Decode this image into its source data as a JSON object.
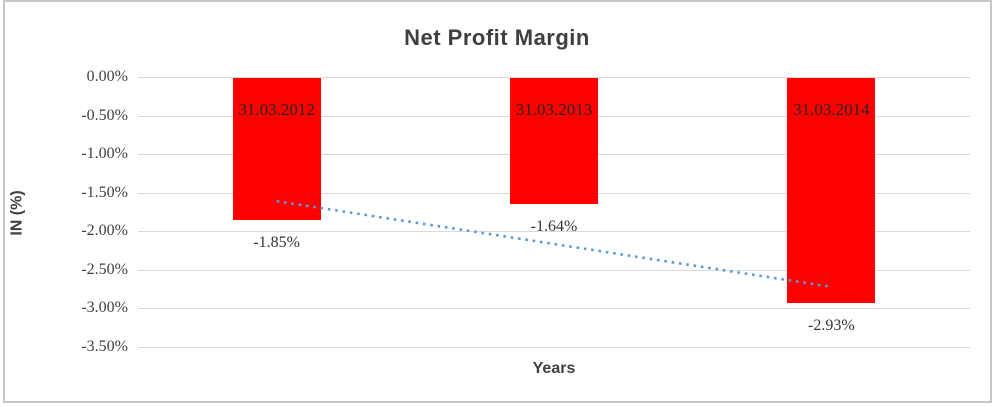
{
  "chart_data": {
    "type": "bar",
    "title": "Net Profit Margin",
    "xlabel": "Years",
    "ylabel": "IN (%)",
    "categories": [
      "31.03.2012",
      "31.03.2013",
      "31.03.2014"
    ],
    "values": [
      -1.85,
      -1.64,
      -2.93
    ],
    "data_labels": [
      "-1.85%",
      "-1.64%",
      "-2.93%"
    ],
    "y_ticks": [
      "0.00%",
      "-0.50%",
      "-1.00%",
      "-1.50%",
      "-2.00%",
      "-2.50%",
      "-3.00%",
      "-3.50%"
    ],
    "ylim": [
      -3.5,
      0
    ],
    "grid": true,
    "legend": "none",
    "bar_color": "#ff0000",
    "trendline": {
      "type": "linear",
      "style": "dotted",
      "color": "#5b9bd5",
      "value_start": -1.61,
      "value_end": -2.72
    }
  },
  "colors": {
    "title_text": "#3f3f3f",
    "tick_text": "#3f3f3f",
    "category_label_text": "#262626",
    "value_label_text": "#333333",
    "gridline": "#d9d9d9",
    "frame_border": "#c6c6c6"
  }
}
